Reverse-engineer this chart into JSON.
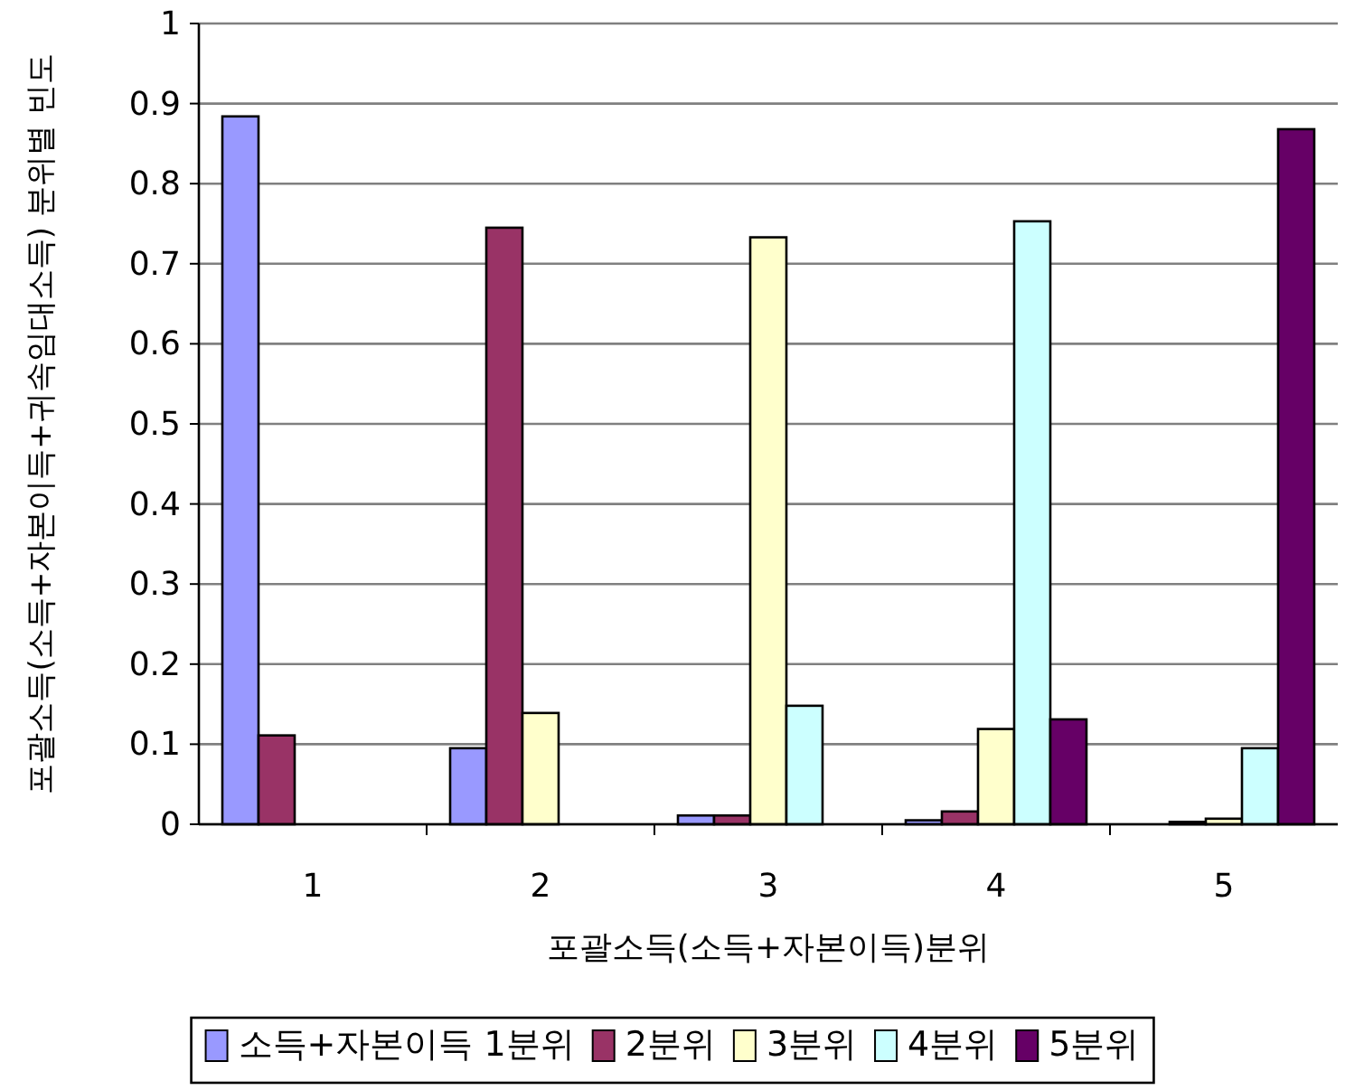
{
  "chart_data": {
    "type": "bar",
    "categories": [
      "1",
      "2",
      "3",
      "4",
      "5"
    ],
    "xlabel": "포괄소득(소득+자본이득)분위",
    "ylabel": "포괄소득(소득+자본이득+귀속임대소득) 분위별 빈도",
    "ylim": [
      0,
      1
    ],
    "yticks": [
      0,
      0.1,
      0.2,
      0.3,
      0.4,
      0.5,
      0.6,
      0.7,
      0.8,
      0.9,
      1
    ],
    "grid": "y",
    "legend": "bottom",
    "series": [
      {
        "name": "소득+자본이득 1분위",
        "color": "#9999ff",
        "values": [
          0.884,
          0.095,
          0.011,
          0.005,
          0
        ]
      },
      {
        "name": "2분위",
        "color": "#993366",
        "values": [
          0.111,
          0.745,
          0.011,
          0.016,
          0.003
        ]
      },
      {
        "name": "3분위",
        "color": "#ffffcc",
        "values": [
          0,
          0.139,
          0.733,
          0.119,
          0.007
        ]
      },
      {
        "name": "4분위",
        "color": "#ccffff",
        "values": [
          0,
          0,
          0.148,
          0.753,
          0.095
        ]
      },
      {
        "name": "5분위",
        "color": "#660066",
        "values": [
          0,
          0,
          0,
          0.131,
          0.868
        ]
      }
    ]
  }
}
